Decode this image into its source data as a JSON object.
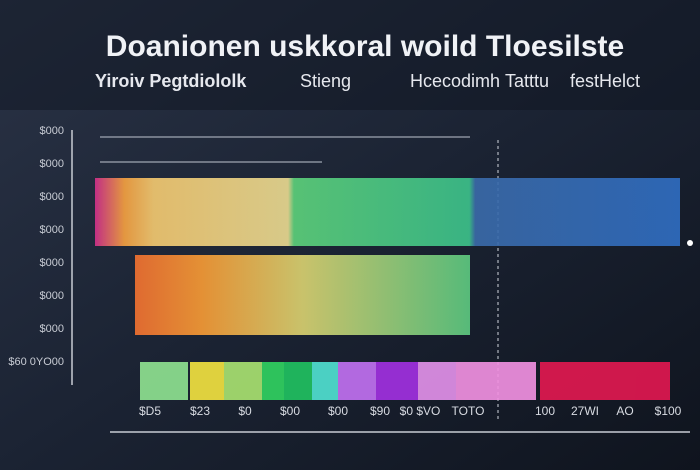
{
  "header": {
    "title": "Doanionen uskkoral woild Tloesilste"
  },
  "legend": {
    "items": [
      "Yiroiv Pegtdiololk",
      "Stieng",
      "Hcecodimh",
      "Tatttu",
      "festHelct"
    ]
  },
  "y_axis": {
    "labels": [
      "$000",
      "$000",
      "$000",
      "$000",
      "$000",
      "$000",
      "$000",
      "$60 0YO00"
    ]
  },
  "x_axis": {
    "labels": [
      "$D5",
      "$23",
      "$0",
      "$00",
      "$00",
      "$90",
      "$0 $VO",
      "TOTO",
      "100",
      "27WI",
      "AO",
      "$100"
    ]
  }
}
